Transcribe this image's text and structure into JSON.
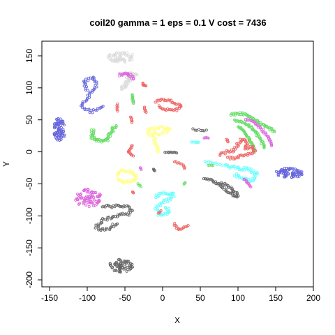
{
  "chart_data": {
    "type": "scatter",
    "title": "coil20 gamma = 1 eps = 0.1 V cost = 7436",
    "xlabel": "X",
    "ylabel": "Y",
    "xlim": [
      -160,
      200
    ],
    "ylim": [
      -210,
      175
    ],
    "xticks": [
      -150,
      -100,
      -50,
      0,
      50,
      100,
      150,
      200
    ],
    "yticks": [
      -200,
      -150,
      -100,
      -50,
      0,
      50,
      100,
      150
    ],
    "grid": false,
    "legend": "none",
    "marker": "open-circle",
    "clusters": [
      {
        "color": "#dddddd",
        "shape": "blob",
        "center": [
          -55,
          148
        ],
        "radius": [
          18,
          8
        ],
        "n": 70
      },
      {
        "color": "#dddddd",
        "shape": "path",
        "points": [
          [
            -55,
            98
          ],
          [
            -48,
            106
          ],
          [
            -44,
            112
          ],
          [
            -46,
            118
          ],
          [
            -40,
            122
          ],
          [
            -35,
            118
          ]
        ],
        "width": 6,
        "n": 55
      },
      {
        "color": "#6666dd",
        "shape": "path",
        "points": [
          [
            -100,
            95
          ],
          [
            -105,
            110
          ],
          [
            -92,
            117
          ],
          [
            -88,
            104
          ],
          [
            -100,
            84
          ],
          [
            -108,
            72
          ],
          [
            -95,
            62
          ],
          [
            -78,
            73
          ]
        ],
        "width": 4,
        "n": 60
      },
      {
        "color": "#dd66dd",
        "shape": "path",
        "points": [
          [
            -58,
            120
          ],
          [
            -46,
            123
          ],
          [
            -38,
            113
          ]
        ],
        "width": 4,
        "n": 22
      },
      {
        "color": "#6666dd",
        "shape": "blob",
        "center": [
          -137,
          35
        ],
        "radius": [
          8,
          18
        ],
        "n": 80
      },
      {
        "color": "#66dd66",
        "shape": "path",
        "points": [
          [
            -92,
            35
          ],
          [
            -95,
            25
          ],
          [
            -87,
            17
          ],
          [
            -75,
            17
          ],
          [
            -70,
            28
          ],
          [
            -62,
            42
          ]
        ],
        "width": 5,
        "n": 50
      },
      {
        "color": "#66dd66",
        "shape": "path",
        "points": [
          [
            -40,
            90
          ],
          [
            -39,
            75
          ]
        ],
        "width": 2,
        "n": 10
      },
      {
        "color": "#ee6666",
        "shape": "path",
        "points": [
          [
            -27,
            107
          ],
          [
            -22,
            102
          ]
        ],
        "width": 2,
        "n": 8
      },
      {
        "color": "#ee6666",
        "shape": "path",
        "points": [
          [
            -60,
            75
          ],
          [
            -60,
            62
          ]
        ],
        "width": 2,
        "n": 6
      },
      {
        "color": "#ee6666",
        "shape": "path",
        "points": [
          [
            -42,
            55
          ],
          [
            -40,
            45
          ]
        ],
        "width": 2,
        "n": 6
      },
      {
        "color": "#ee6666",
        "shape": "path",
        "points": [
          [
            -25,
            70
          ],
          [
            -22,
            60
          ]
        ],
        "width": 2,
        "n": 6
      },
      {
        "color": "#ee6666",
        "shape": "path",
        "points": [
          [
            -10,
            78
          ],
          [
            -2,
            82
          ],
          [
            10,
            80
          ],
          [
            25,
            72
          ],
          [
            18,
            65
          ],
          [
            2,
            66
          ],
          [
            -6,
            72
          ]
        ],
        "width": 3,
        "n": 45
      },
      {
        "color": "#ffff88",
        "shape": "path",
        "points": [
          [
            -20,
            25
          ],
          [
            -18,
            35
          ],
          [
            -5,
            38
          ],
          [
            10,
            37
          ],
          [
            3,
            30
          ],
          [
            -12,
            28
          ],
          [
            -10,
            12
          ],
          [
            -5,
            -2
          ]
        ],
        "width": 5,
        "n": 55
      },
      {
        "color": "#ee6666",
        "shape": "path",
        "points": [
          [
            -40,
            10
          ],
          [
            -46,
            0
          ],
          [
            -38,
            -7
          ]
        ],
        "width": 2,
        "n": 14
      },
      {
        "color": "#666666",
        "shape": "path",
        "points": [
          [
            3,
            -1
          ],
          [
            20,
            -1
          ]
        ],
        "width": 2,
        "n": 10
      },
      {
        "color": "#ee6666",
        "shape": "path",
        "points": [
          [
            15,
            -15
          ],
          [
            27,
            -20
          ],
          [
            30,
            -28
          ]
        ],
        "width": 2,
        "n": 10
      },
      {
        "color": "#666666",
        "shape": "path",
        "points": [
          [
            -12,
            -27
          ],
          [
            -10,
            -30
          ]
        ],
        "width": 1,
        "n": 4
      },
      {
        "color": "#dd66dd",
        "shape": "path",
        "points": [
          [
            -30,
            -25
          ],
          [
            -28,
            -28
          ]
        ],
        "width": 1,
        "n": 3
      },
      {
        "color": "#ffff88",
        "shape": "path",
        "points": [
          [
            -60,
            -38
          ],
          [
            -57,
            -30
          ],
          [
            -45,
            -30
          ],
          [
            -35,
            -36
          ],
          [
            -37,
            -45
          ],
          [
            -52,
            -48
          ],
          [
            -60,
            -42
          ]
        ],
        "width": 4,
        "n": 45
      },
      {
        "color": "#66dd66",
        "shape": "path",
        "points": [
          [
            -33,
            -50
          ],
          [
            -28,
            -55
          ]
        ],
        "width": 1,
        "n": 4
      },
      {
        "color": "#66dd66",
        "shape": "path",
        "points": [
          [
            30,
            -47
          ],
          [
            28,
            -52
          ]
        ],
        "width": 1,
        "n": 3
      },
      {
        "color": "#ee6666",
        "shape": "path",
        "points": [
          [
            -40,
            -62
          ],
          [
            -38,
            -65
          ]
        ],
        "width": 1,
        "n": 3
      },
      {
        "color": "#dd66dd",
        "shape": "blob",
        "center": [
          -99,
          -72
        ],
        "radius": [
          18,
          14
        ],
        "n": 80
      },
      {
        "color": "#66ffff",
        "shape": "path",
        "points": [
          [
            -10,
            -70
          ],
          [
            0,
            -65
          ],
          [
            15,
            -65
          ],
          [
            12,
            -72
          ],
          [
            0,
            -80
          ],
          [
            -8,
            -88
          ],
          [
            -3,
            -100
          ],
          [
            8,
            -96
          ],
          [
            5,
            -85
          ]
        ],
        "width": 5,
        "n": 60
      },
      {
        "color": "#ee6666",
        "shape": "path",
        "points": [
          [
            -2,
            -92
          ],
          [
            -6,
            -97
          ]
        ],
        "width": 1,
        "n": 4
      },
      {
        "color": "#666666",
        "shape": "path",
        "points": [
          [
            -80,
            -85
          ],
          [
            -65,
            -85
          ],
          [
            -50,
            -85
          ],
          [
            -40,
            -90
          ],
          [
            -45,
            -97
          ],
          [
            -60,
            -100
          ],
          [
            -80,
            -107
          ],
          [
            -88,
            -117
          ],
          [
            -82,
            -122
          ],
          [
            -72,
            -120
          ],
          [
            -60,
            -110
          ]
        ],
        "width": 5,
        "n": 75
      },
      {
        "color": "#ee6666",
        "shape": "path",
        "points": [
          [
            15,
            -112
          ],
          [
            21,
            -122
          ],
          [
            35,
            -115
          ]
        ],
        "width": 2,
        "n": 15
      },
      {
        "color": "#666666",
        "shape": "blob",
        "center": [
          -55,
          -178
        ],
        "radius": [
          16,
          10
        ],
        "n": 70
      },
      {
        "color": "#666666",
        "shape": "path",
        "points": [
          [
            40,
            35
          ],
          [
            60,
            33
          ]
        ],
        "width": 2,
        "n": 8
      },
      {
        "color": "#66ffff",
        "shape": "path",
        "points": [
          [
            38,
            15
          ],
          [
            50,
            15
          ]
        ],
        "width": 2,
        "n": 6
      },
      {
        "color": "#dd66dd",
        "shape": "path",
        "points": [
          [
            55,
            22
          ],
          [
            62,
            22
          ]
        ],
        "width": 2,
        "n": 5
      },
      {
        "color": "#66dd66",
        "shape": "path",
        "points": [
          [
            90,
            58
          ],
          [
            105,
            60
          ],
          [
            120,
            52
          ],
          [
            135,
            40
          ],
          [
            150,
            32
          ]
        ],
        "width": 4,
        "n": 50
      },
      {
        "color": "#66dd66",
        "shape": "path",
        "points": [
          [
            95,
            50
          ],
          [
            110,
            45
          ],
          [
            120,
            35
          ],
          [
            130,
            20
          ],
          [
            135,
            5
          ]
        ],
        "width": 4,
        "n": 45
      },
      {
        "color": "#66dd66",
        "shape": "path",
        "points": [
          [
            100,
            40
          ],
          [
            110,
            30
          ],
          [
            118,
            15
          ],
          [
            122,
            0
          ]
        ],
        "width": 3,
        "n": 35
      },
      {
        "color": "#dd66dd",
        "shape": "path",
        "points": [
          [
            110,
            52
          ],
          [
            122,
            45
          ],
          [
            132,
            35
          ],
          [
            140,
            22
          ],
          [
            145,
            8
          ]
        ],
        "width": 3,
        "n": 35
      },
      {
        "color": "#ee6666",
        "shape": "path",
        "points": [
          [
            75,
            -5
          ],
          [
            85,
            0
          ],
          [
            95,
            2
          ],
          [
            100,
            12
          ],
          [
            105,
            20
          ],
          [
            112,
            15
          ],
          [
            108,
            5
          ],
          [
            118,
            8
          ],
          [
            122,
            0
          ],
          [
            110,
            -5
          ],
          [
            95,
            -10
          ],
          [
            85,
            -10
          ]
        ],
        "width": 4,
        "n": 75
      },
      {
        "color": "#ee6666",
        "shape": "path",
        "points": [
          [
            85,
            20
          ],
          [
            88,
            15
          ]
        ],
        "width": 2,
        "n": 4
      },
      {
        "color": "#66ffff",
        "shape": "path",
        "points": [
          [
            55,
            -15
          ],
          [
            70,
            -18
          ],
          [
            80,
            -22
          ]
        ],
        "width": 2,
        "n": 10
      },
      {
        "color": "#66dd66",
        "shape": "path",
        "points": [
          [
            60,
            -20
          ],
          [
            68,
            -22
          ]
        ],
        "width": 2,
        "n": 4
      },
      {
        "color": "#66ffff",
        "shape": "path",
        "points": [
          [
            82,
            -22
          ],
          [
            100,
            -25
          ],
          [
            115,
            -28
          ],
          [
            125,
            -35
          ],
          [
            118,
            -45
          ],
          [
            105,
            -40
          ],
          [
            95,
            -35
          ]
        ],
        "width": 5,
        "n": 55
      },
      {
        "color": "#dd66dd",
        "shape": "path",
        "points": [
          [
            108,
            -42
          ],
          [
            113,
            -50
          ],
          [
            118,
            -55
          ]
        ],
        "width": 2,
        "n": 10
      },
      {
        "color": "#666666",
        "shape": "path",
        "points": [
          [
            55,
            -40
          ],
          [
            65,
            -45
          ],
          [
            80,
            -55
          ],
          [
            90,
            -65
          ],
          [
            100,
            -70
          ],
          [
            95,
            -60
          ],
          [
            85,
            -52
          ],
          [
            75,
            -48
          ]
        ],
        "width": 4,
        "n": 55
      },
      {
        "color": "#6666dd",
        "shape": "blob",
        "center": [
          168,
          -33
        ],
        "radius": [
          18,
          8
        ],
        "n": 75
      }
    ]
  }
}
